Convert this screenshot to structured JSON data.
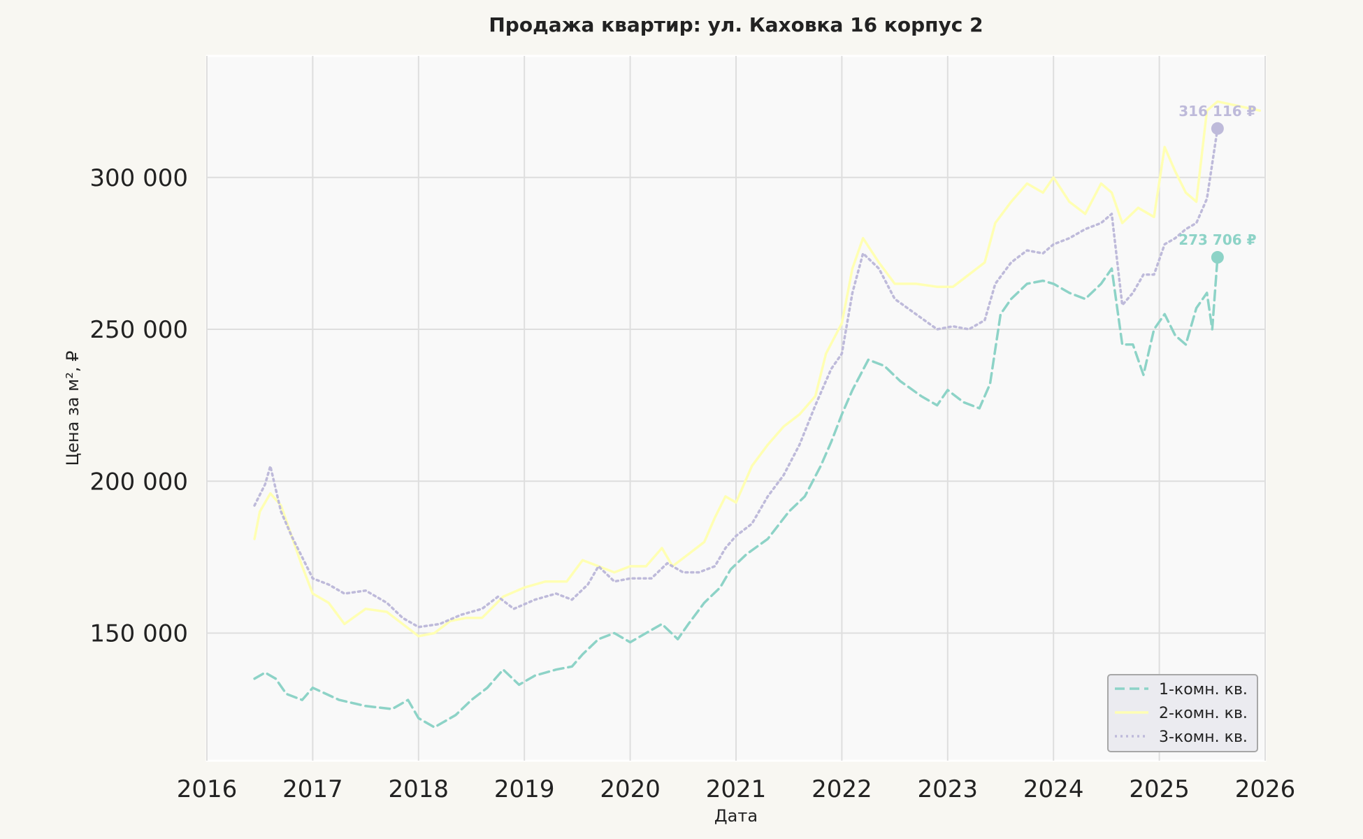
{
  "chart_data": {
    "type": "line",
    "title": "Продажа квартир: ул. Каховка 16 корпус 2",
    "xlabel": "Дата",
    "ylabel": "Цена за м², ₽",
    "xlim": [
      2016,
      2026
    ],
    "ylim": [
      108000,
      340000
    ],
    "x_ticks": [
      2016,
      2017,
      2018,
      2019,
      2020,
      2021,
      2022,
      2023,
      2024,
      2025,
      2026
    ],
    "x_tick_labels": [
      "2016",
      "2017",
      "2018",
      "2019",
      "2020",
      "2021",
      "2022",
      "2023",
      "2024",
      "2025",
      "2026"
    ],
    "y_ticks": [
      150000,
      200000,
      250000,
      300000
    ],
    "y_tick_labels": [
      "150 000",
      "200 000",
      "250 000",
      "300 000"
    ],
    "grid": true,
    "legend_position": "bottom-right",
    "series": [
      {
        "name": "1-комн. кв.",
        "color": "#8dd3c7",
        "dash": "dashed",
        "end_label": "273 706 ₽",
        "end_value": 273706,
        "x": [
          2016.45,
          2016.55,
          2016.65,
          2016.75,
          2016.9,
          2017.0,
          2017.25,
          2017.5,
          2017.75,
          2017.9,
          2018.0,
          2018.15,
          2018.35,
          2018.5,
          2018.65,
          2018.8,
          2018.95,
          2019.1,
          2019.3,
          2019.45,
          2019.55,
          2019.7,
          2019.85,
          2020.0,
          2020.15,
          2020.3,
          2020.45,
          2020.55,
          2020.7,
          2020.85,
          2020.95,
          2021.1,
          2021.3,
          2021.5,
          2021.65,
          2021.8,
          2021.9,
          2022.0,
          2022.1,
          2022.25,
          2022.4,
          2022.55,
          2022.75,
          2022.9,
          2023.0,
          2023.15,
          2023.3,
          2023.4,
          2023.5,
          2023.6,
          2023.75,
          2023.9,
          2024.0,
          2024.15,
          2024.3,
          2024.45,
          2024.55,
          2024.65,
          2024.75,
          2024.85,
          2024.95,
          2025.05,
          2025.15,
          2025.25,
          2025.35,
          2025.45,
          2025.5,
          2025.55
        ],
        "values": [
          135000,
          137000,
          135000,
          130000,
          128000,
          132000,
          128000,
          126000,
          125000,
          128000,
          122000,
          119000,
          123000,
          128000,
          132000,
          138000,
          133000,
          136000,
          138000,
          139000,
          143000,
          148000,
          150000,
          147000,
          150000,
          153000,
          148000,
          153000,
          160000,
          165000,
          171000,
          176000,
          181000,
          190000,
          195000,
          205000,
          213000,
          222000,
          230000,
          240000,
          238000,
          233000,
          228000,
          225000,
          230000,
          226000,
          224000,
          232000,
          255000,
          260000,
          265000,
          266000,
          265000,
          262000,
          260000,
          265000,
          270000,
          245000,
          245000,
          235000,
          250000,
          255000,
          248000,
          245000,
          257000,
          262000,
          250000,
          273706
        ]
      },
      {
        "name": "2-комн. кв.",
        "color": "#ffffb3",
        "dash": "solid",
        "end_label": "",
        "end_value": 322000,
        "x": [
          2016.45,
          2016.5,
          2016.6,
          2016.7,
          2016.8,
          2016.9,
          2017.0,
          2017.15,
          2017.3,
          2017.5,
          2017.7,
          2017.85,
          2018.0,
          2018.15,
          2018.3,
          2018.45,
          2018.6,
          2018.8,
          2019.0,
          2019.2,
          2019.4,
          2019.55,
          2019.7,
          2019.85,
          2020.0,
          2020.15,
          2020.3,
          2020.4,
          2020.55,
          2020.7,
          2020.8,
          2020.9,
          2021.0,
          2021.15,
          2021.3,
          2021.45,
          2021.6,
          2021.75,
          2021.85,
          2022.0,
          2022.1,
          2022.2,
          2022.35,
          2022.5,
          2022.7,
          2022.9,
          2023.05,
          2023.2,
          2023.35,
          2023.45,
          2023.6,
          2023.75,
          2023.9,
          2024.0,
          2024.15,
          2024.3,
          2024.45,
          2024.55,
          2024.65,
          2024.8,
          2024.95,
          2025.05,
          2025.15,
          2025.25,
          2025.35,
          2025.45,
          2025.55,
          2025.95
        ],
        "values": [
          181000,
          190000,
          196000,
          192000,
          182000,
          172000,
          163000,
          160000,
          153000,
          158000,
          157000,
          153000,
          149000,
          150000,
          154000,
          155000,
          155000,
          162000,
          165000,
          167000,
          167000,
          174000,
          172000,
          170000,
          172000,
          172000,
          178000,
          172000,
          176000,
          180000,
          188000,
          195000,
          193000,
          205000,
          212000,
          218000,
          222000,
          228000,
          242000,
          252000,
          270000,
          280000,
          272000,
          265000,
          265000,
          264000,
          264000,
          268000,
          272000,
          285000,
          292000,
          298000,
          295000,
          300000,
          292000,
          288000,
          298000,
          295000,
          285000,
          290000,
          287000,
          310000,
          302000,
          295000,
          292000,
          322000,
          325000,
          322000
        ]
      },
      {
        "name": "3-комн. кв.",
        "color": "#bebada",
        "dash": "dotted",
        "end_label": "316 116 ₽",
        "end_value": 316116,
        "x": [
          2016.45,
          2016.55,
          2016.6,
          2016.7,
          2016.8,
          2016.9,
          2017.0,
          2017.15,
          2017.3,
          2017.5,
          2017.7,
          2017.85,
          2018.0,
          2018.2,
          2018.4,
          2018.6,
          2018.75,
          2018.9,
          2019.1,
          2019.3,
          2019.45,
          2019.6,
          2019.7,
          2019.85,
          2020.0,
          2020.2,
          2020.35,
          2020.5,
          2020.65,
          2020.8,
          2020.9,
          2021.0,
          2021.15,
          2021.3,
          2021.45,
          2021.6,
          2021.75,
          2021.9,
          2022.0,
          2022.1,
          2022.2,
          2022.35,
          2022.5,
          2022.7,
          2022.9,
          2023.05,
          2023.2,
          2023.35,
          2023.45,
          2023.6,
          2023.75,
          2023.9,
          2024.0,
          2024.15,
          2024.3,
          2024.45,
          2024.55,
          2024.65,
          2024.75,
          2024.85,
          2024.95,
          2025.05,
          2025.15,
          2025.25,
          2025.35,
          2025.45,
          2025.55
        ],
        "values": [
          192000,
          199000,
          205000,
          190000,
          182000,
          175000,
          168000,
          166000,
          163000,
          164000,
          160000,
          155000,
          152000,
          153000,
          156000,
          158000,
          162000,
          158000,
          161000,
          163000,
          161000,
          166000,
          172000,
          167000,
          168000,
          168000,
          173000,
          170000,
          170000,
          172000,
          178000,
          182000,
          186000,
          195000,
          202000,
          212000,
          225000,
          237000,
          242000,
          262000,
          275000,
          270000,
          260000,
          255000,
          250000,
          251000,
          250000,
          253000,
          265000,
          272000,
          276000,
          275000,
          278000,
          280000,
          283000,
          285000,
          288000,
          258000,
          262000,
          268000,
          268000,
          278000,
          280000,
          283000,
          285000,
          293000,
          316116
        ]
      }
    ]
  }
}
